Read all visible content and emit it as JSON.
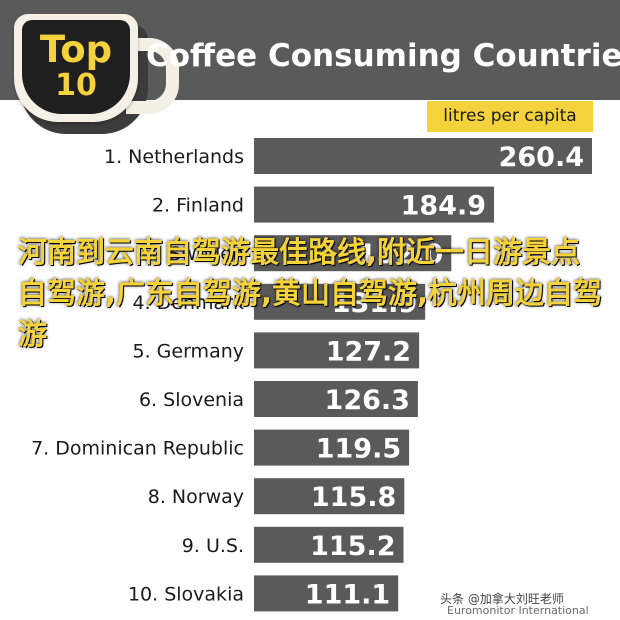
{
  "logo": {
    "top_text": "Top",
    "number_text": "10"
  },
  "units_label": "litres per capita",
  "overlay_text": "河南到云南自驾游最佳路线,附近一日游景点自驾游,广东自驾游,黄山自驾游,杭州周边自驾游",
  "watermark": "头条 @加拿大刘旺老师",
  "source": "Euromonitor International",
  "colors": {
    "header": "#5a5a5a",
    "bar": "#5a5a5a",
    "accent": "#f3d23c",
    "label": "#1a1a1a",
    "value": "#ffffff"
  },
  "chart_data": {
    "type": "bar",
    "orientation": "horizontal",
    "title": "Coffee Consuming Countries",
    "xlabel": "litres per capita",
    "ylabel": "",
    "xlim": [
      0,
      260.4
    ],
    "grid": false,
    "categories": [
      "1. Netherlands",
      "2. Finland",
      "3. Sweden",
      "4. Denmark",
      "5. Germany",
      "6. Slovenia",
      "7. Dominican Republic",
      "8. Norway",
      "9. U.S.",
      "10. Slovakia"
    ],
    "values": [
      260.4,
      184.9,
      152.0,
      131.9,
      127.2,
      126.3,
      119.5,
      115.8,
      115.2,
      111.1
    ],
    "value_labels": [
      "260.4",
      "184.9",
      "152.0",
      "131.9",
      "127.2",
      "126.3",
      "119.5",
      "115.8",
      "115.2",
      "111.1"
    ]
  }
}
